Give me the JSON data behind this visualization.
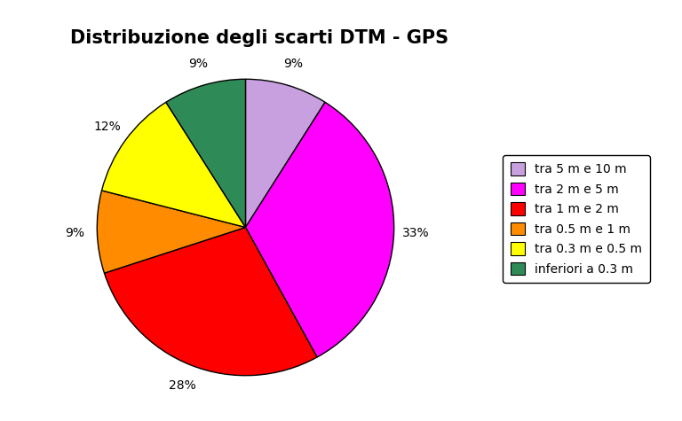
{
  "title": "Distribuzione degli scarti DTM - GPS",
  "slices": [
    9,
    33,
    28,
    9,
    12,
    9
  ],
  "colors": [
    "#c8a0e0",
    "#ff00ff",
    "#ff0000",
    "#ff8c00",
    "#ffff00",
    "#2e8b57"
  ],
  "labels": [
    "tra 5 m e 10 m",
    "tra 2 m e 5 m",
    "tra 1 m e 2 m",
    "tra 0.5 m e 1 m",
    "tra 0.3 m e 0.5 m",
    "inferiori a 0.3 m"
  ],
  "pct_labels": [
    "9%",
    "33%",
    "28%",
    "9%",
    "12%",
    "9%"
  ],
  "title_fontsize": 15,
  "label_fontsize": 10,
  "legend_fontsize": 10,
  "background_color": "#ffffff",
  "startangle": 90
}
